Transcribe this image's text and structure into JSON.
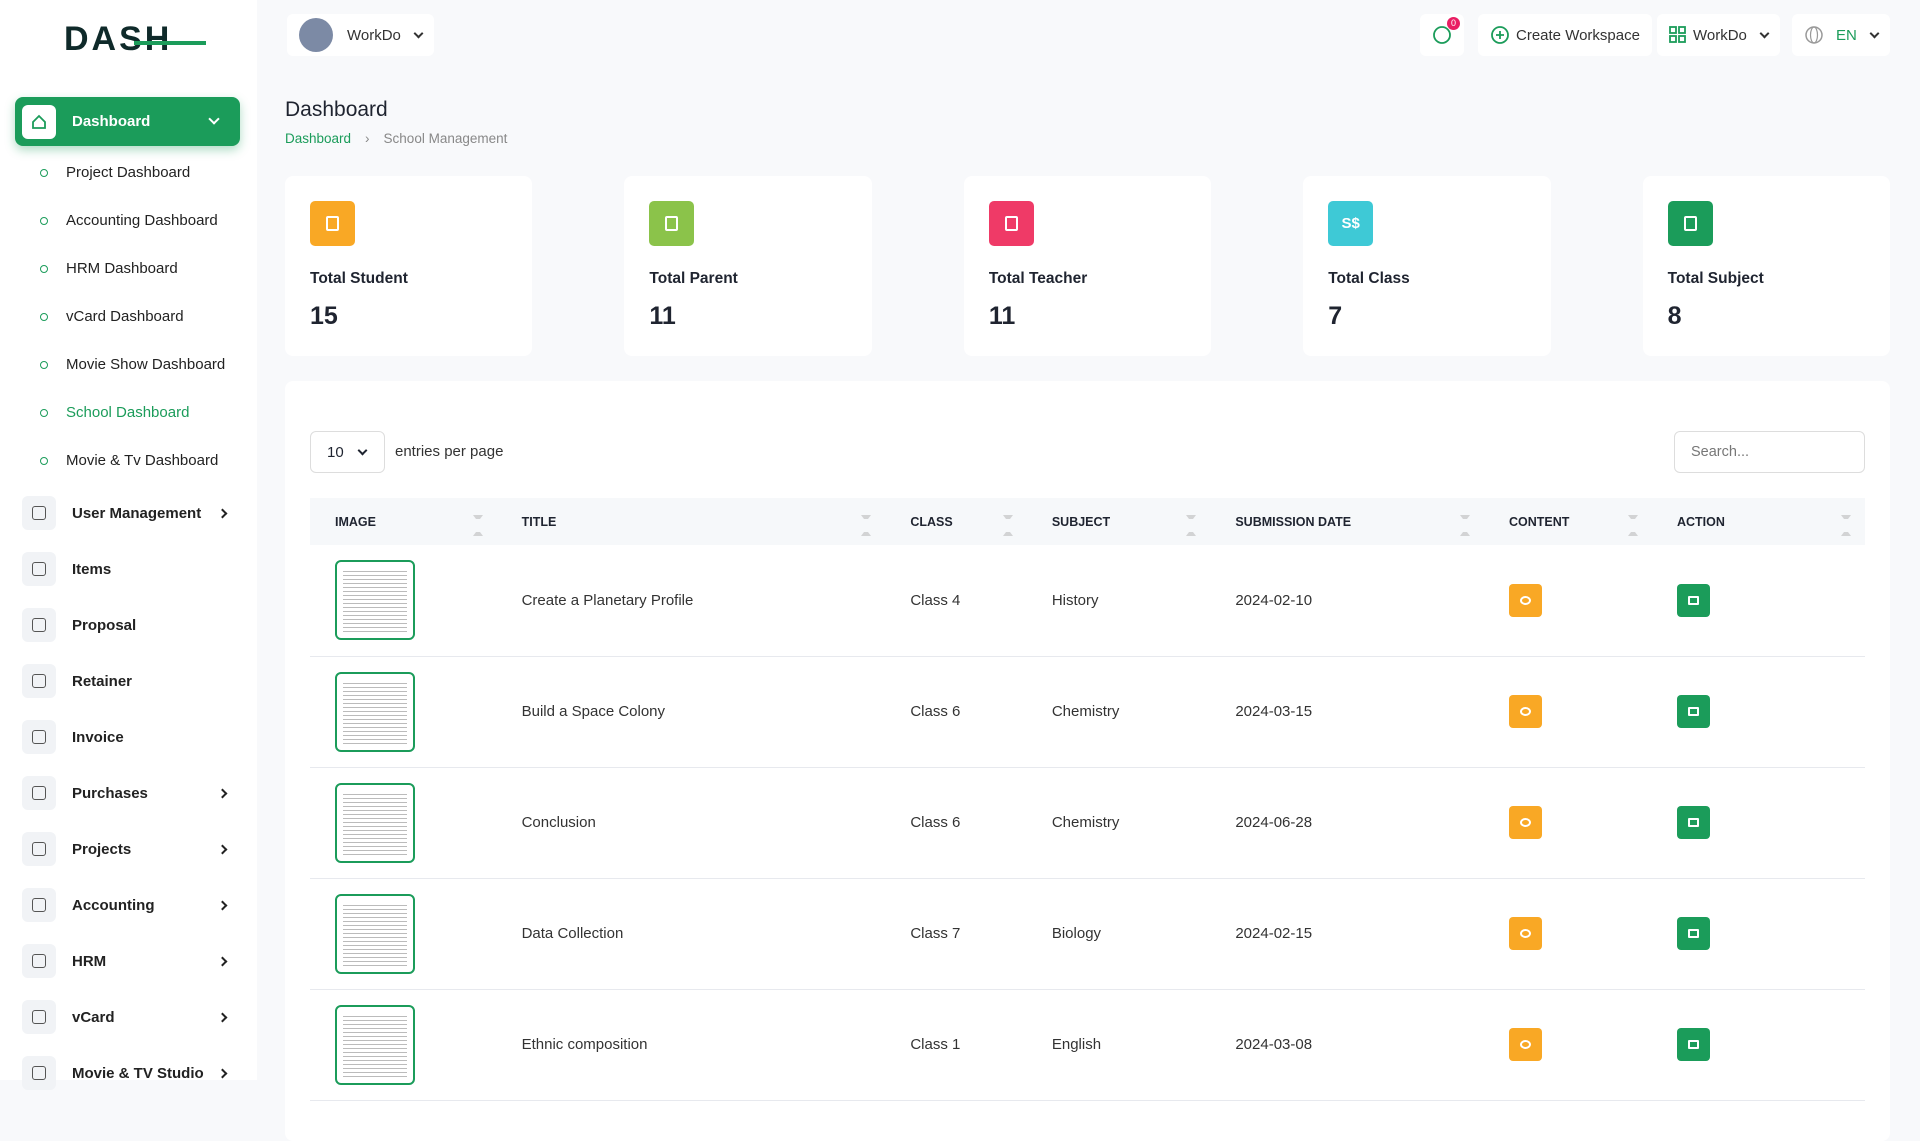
{
  "logo": "DASH",
  "topbar": {
    "workspace": "WorkDo",
    "notifications": "0",
    "create_workspace": "Create Workspace",
    "company": "WorkDo",
    "language": "EN"
  },
  "sidebar": {
    "active": {
      "label": "Dashboard"
    },
    "submenu": [
      {
        "label": "Project Dashboard"
      },
      {
        "label": "Accounting Dashboard"
      },
      {
        "label": "HRM Dashboard"
      },
      {
        "label": "vCard Dashboard"
      },
      {
        "label": "Movie Show Dashboard"
      },
      {
        "label": "School Dashboard",
        "active": true
      },
      {
        "label": "Movie & Tv Dashboard"
      }
    ],
    "menu": [
      {
        "label": "User Management",
        "expandable": true
      },
      {
        "label": "Items"
      },
      {
        "label": "Proposal"
      },
      {
        "label": "Retainer"
      },
      {
        "label": "Invoice"
      },
      {
        "label": "Purchases",
        "expandable": true
      },
      {
        "label": "Projects",
        "expandable": true
      },
      {
        "label": "Accounting",
        "expandable": true
      },
      {
        "label": "HRM",
        "expandable": true
      },
      {
        "label": "vCard",
        "expandable": true
      },
      {
        "label": "Movie & TV Studio",
        "expandable": true
      }
    ]
  },
  "header": {
    "title": "Dashboard",
    "breadcrumb": [
      "Dashboard",
      "School Management"
    ]
  },
  "cards": [
    {
      "label": "Total Student",
      "value": "15",
      "icon_text": ""
    },
    {
      "label": "Total Parent",
      "value": "11",
      "icon_text": ""
    },
    {
      "label": "Total Teacher",
      "value": "11",
      "icon_text": ""
    },
    {
      "label": "Total Class",
      "value": "7",
      "icon_text": "S$"
    },
    {
      "label": "Total Subject",
      "value": "8",
      "icon_text": ""
    }
  ],
  "table": {
    "page_size": "10",
    "page_size_label": "entries per page",
    "search_placeholder": "Search...",
    "columns": [
      "IMAGE",
      "TITLE",
      "CLASS",
      "SUBJECT",
      "SUBMISSION DATE",
      "CONTENT",
      "ACTION"
    ],
    "rows": [
      [
        "Create a Planetary Profile",
        "Class 4",
        "History",
        "2024-02-10"
      ],
      [
        "Build a Space Colony",
        "Class 6",
        "Chemistry",
        "2024-03-15"
      ],
      [
        "Conclusion",
        "Class 6",
        "Chemistry",
        "2024-06-28"
      ],
      [
        "Data Collection",
        "Class 7",
        "Biology",
        "2024-02-15"
      ],
      [
        "Ethnic composition",
        "Class 1",
        "English",
        "2024-03-08"
      ]
    ]
  }
}
